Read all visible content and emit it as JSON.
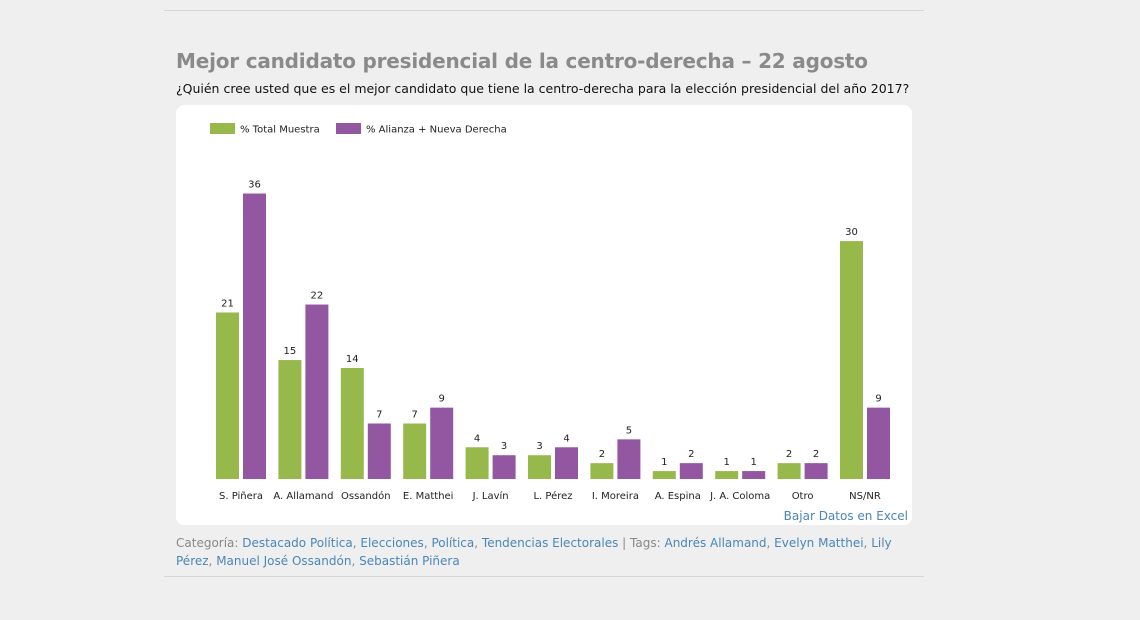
{
  "page": {
    "title": "Mejor candidato presidencial de la centro-derecha – 22 agosto",
    "subtitle": "¿Quién cree usted que es el mejor candidato que tiene la centro-derecha para la elección presidencial del año 2017?",
    "download_label": "Bajar Datos en Excel"
  },
  "meta": {
    "category_label": "Categoría:",
    "categories": [
      "Destacado Política",
      "Elecciones",
      "Política",
      "Tendencias Electorales"
    ],
    "tags_label": "Tags:",
    "tags": [
      "Andrés Allamand",
      "Evelyn Matthei",
      "Lily Pérez",
      "Manuel José Ossandón",
      "Sebastián Piñera"
    ]
  },
  "colors": {
    "total": "#97b94b",
    "alianza": "#9356a0"
  },
  "chart_data": {
    "type": "bar",
    "categories": [
      "S. Piñera",
      "A. Allamand",
      "Ossandón",
      "E. Matthei",
      "J. Lavín",
      "L. Pérez",
      "I. Moreira",
      "A. Espina",
      "J. A. Coloma",
      "Otro",
      "NS/NR"
    ],
    "series": [
      {
        "name": "% Total Muestra",
        "values": [
          21,
          15,
          14,
          7,
          4,
          3,
          2,
          1,
          1,
          2,
          30
        ]
      },
      {
        "name": "% Alianza + Nueva Derecha",
        "values": [
          36,
          22,
          7,
          9,
          3,
          4,
          5,
          2,
          1,
          2,
          9
        ]
      }
    ],
    "ylim": [
      0,
      40
    ],
    "grid": false,
    "legend": "top-left",
    "data_labels": true
  }
}
